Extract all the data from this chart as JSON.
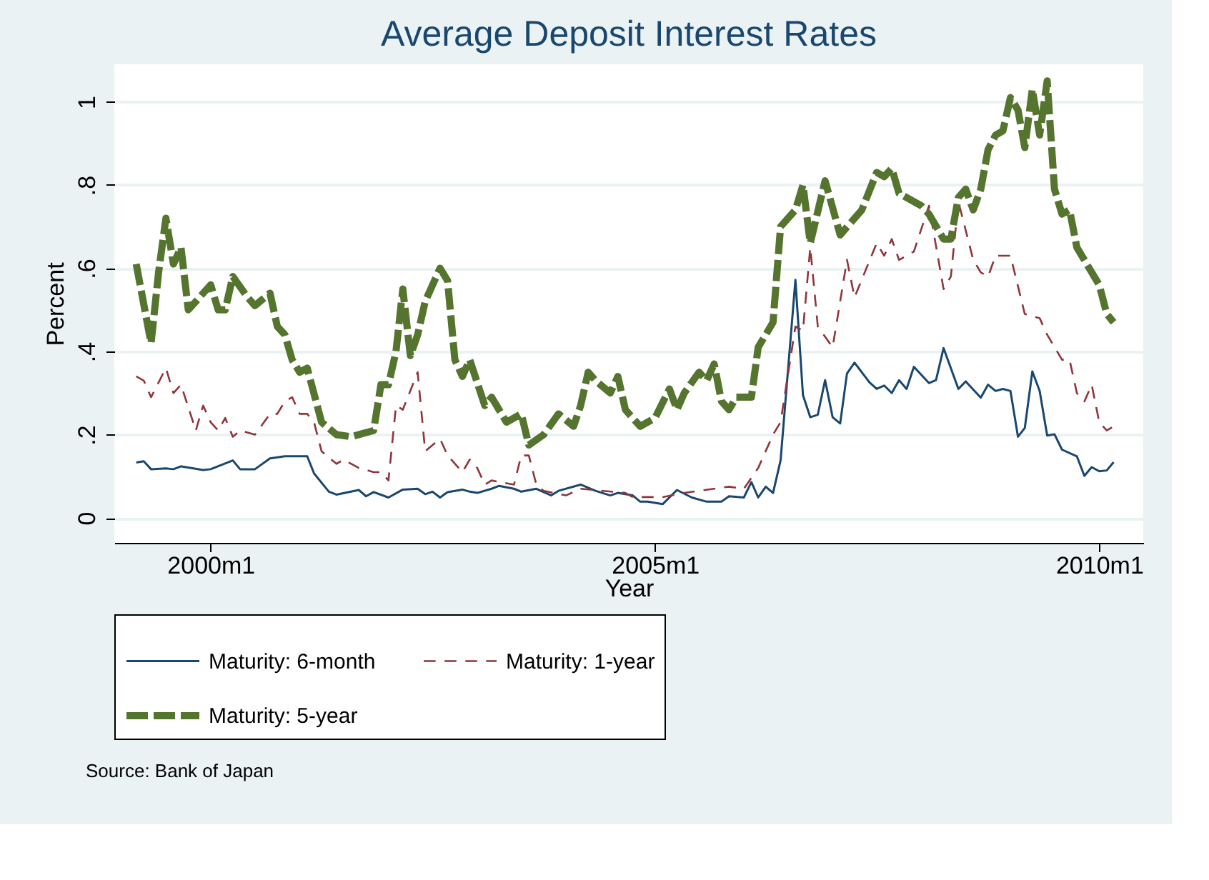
{
  "chart_data": {
    "type": "line",
    "title": "Average Deposit Interest Rates",
    "xlabel": "Year",
    "ylabel": "Percent",
    "xlim": [
      "1998-12",
      "2010-07"
    ],
    "xticks": [
      {
        "value": "2000-01",
        "label": "2000m1"
      },
      {
        "value": "2005-01",
        "label": "2005m1"
      },
      {
        "value": "2010-01",
        "label": "2010m1"
      }
    ],
    "ylim": [
      -0.06,
      1.09
    ],
    "yticks": [
      {
        "value": 0,
        "label": "0"
      },
      {
        "value": 0.2,
        "label": ".2"
      },
      {
        "value": 0.4,
        "label": ".4"
      },
      {
        "value": 0.6,
        "label": ".6"
      },
      {
        "value": 0.8,
        "label": ".8"
      },
      {
        "value": 1,
        "label": "1"
      }
    ],
    "grid": "y",
    "legend": "bottom",
    "marker": "none",
    "annotations": [
      "Source: Bank of Japan"
    ],
    "series": [
      {
        "name": "Maturity: 6-month",
        "color": "#1a476f",
        "line_style": "solid",
        "x": [
          "1999-03",
          "1999-04",
          "1999-05",
          "1999-07",
          "1999-08",
          "1999-09",
          "1999-12",
          "2000-01",
          "2000-04",
          "2000-05",
          "2000-07",
          "2000-09",
          "2000-11",
          "2001-01",
          "2001-02",
          "2001-03",
          "2001-05",
          "2001-06",
          "2001-09",
          "2001-10",
          "2001-11",
          "2002-01",
          "2002-03",
          "2002-05",
          "2002-06",
          "2002-07",
          "2002-08",
          "2002-09",
          "2002-11",
          "2002-12",
          "2003-01",
          "2003-03",
          "2003-04",
          "2003-06",
          "2003-07",
          "2003-09",
          "2003-11",
          "2003-12",
          "2004-03",
          "2004-05",
          "2004-07",
          "2004-08",
          "2004-10",
          "2004-11",
          "2004-12",
          "2005-02",
          "2005-04",
          "2005-06",
          "2005-08",
          "2005-10",
          "2005-11",
          "2006-01",
          "2006-02",
          "2006-03",
          "2006-04",
          "2006-05",
          "2006-06",
          "2006-08",
          "2006-09",
          "2006-10",
          "2006-11",
          "2006-12",
          "2007-01",
          "2007-02",
          "2007-03",
          "2007-04",
          "2007-06",
          "2007-07",
          "2007-08",
          "2007-09",
          "2007-10",
          "2007-11",
          "2007-12",
          "2008-02",
          "2008-03",
          "2008-04",
          "2008-06",
          "2008-07",
          "2008-09",
          "2008-10",
          "2008-11",
          "2008-12",
          "2009-01",
          "2009-02",
          "2009-03",
          "2009-04",
          "2009-05",
          "2009-06",
          "2009-07",
          "2009-08",
          "2009-10",
          "2009-11",
          "2009-12",
          "2010-01",
          "2010-02",
          "2010-03"
        ],
        "values": [
          0.133,
          0.136,
          0.117,
          0.119,
          0.117,
          0.124,
          0.115,
          0.117,
          0.138,
          0.117,
          0.117,
          0.143,
          0.148,
          0.148,
          0.148,
          0.107,
          0.063,
          0.056,
          0.067,
          0.052,
          0.062,
          0.049,
          0.068,
          0.07,
          0.057,
          0.063,
          0.049,
          0.062,
          0.068,
          0.063,
          0.06,
          0.07,
          0.077,
          0.07,
          0.063,
          0.07,
          0.054,
          0.065,
          0.08,
          0.065,
          0.054,
          0.06,
          0.054,
          0.039,
          0.039,
          0.033,
          0.067,
          0.049,
          0.039,
          0.039,
          0.052,
          0.049,
          0.086,
          0.049,
          0.075,
          0.06,
          0.138,
          0.572,
          0.295,
          0.242,
          0.248,
          0.331,
          0.242,
          0.227,
          0.347,
          0.373,
          0.326,
          0.31,
          0.318,
          0.3,
          0.331,
          0.31,
          0.363,
          0.324,
          0.331,
          0.408,
          0.31,
          0.328,
          0.289,
          0.32,
          0.305,
          0.31,
          0.305,
          0.195,
          0.216,
          0.352,
          0.305,
          0.198,
          0.201,
          0.164,
          0.148,
          0.101,
          0.122,
          0.112,
          0.114,
          0.134
        ]
      },
      {
        "name": "Maturity: 1-year",
        "color": "#90353b",
        "line_style": "dashed",
        "x": [
          "1999-03",
          "1999-04",
          "1999-05",
          "1999-07",
          "1999-08",
          "1999-09",
          "1999-11",
          "1999-12",
          "2000-01",
          "2000-02",
          "2000-03",
          "2000-04",
          "2000-05",
          "2000-07",
          "2000-09",
          "2000-10",
          "2000-11",
          "2000-12",
          "2001-01",
          "2001-02",
          "2001-03",
          "2001-04",
          "2001-06",
          "2001-07",
          "2001-09",
          "2001-11",
          "2001-12",
          "2002-01",
          "2002-02",
          "2002-03",
          "2002-05",
          "2002-06",
          "2002-08",
          "2002-09",
          "2002-11",
          "2002-12",
          "2003-01",
          "2003-02",
          "2003-03",
          "2003-06",
          "2003-07",
          "2003-08",
          "2003-09",
          "2003-10",
          "2004-01",
          "2004-03",
          "2004-06",
          "2004-09",
          "2004-10",
          "2005-02",
          "2005-05",
          "2005-07",
          "2005-11",
          "2006-01",
          "2006-03",
          "2006-05",
          "2006-06",
          "2006-08",
          "2006-09",
          "2006-10",
          "2006-11",
          "2007-01",
          "2007-03",
          "2007-04",
          "2007-07",
          "2007-08",
          "2007-09",
          "2007-10",
          "2007-12",
          "2008-02",
          "2008-04",
          "2008-05",
          "2008-06",
          "2008-08",
          "2008-09",
          "2008-10",
          "2008-11",
          "2009-01",
          "2009-03",
          "2009-05",
          "2009-06",
          "2009-08",
          "2009-09",
          "2009-10",
          "2009-11",
          "2009-12",
          "2010-01",
          "2010-02",
          "2010-03"
        ],
        "values": [
          0.34,
          0.33,
          0.29,
          0.36,
          0.3,
          0.32,
          0.21,
          0.27,
          0.23,
          0.21,
          0.24,
          0.195,
          0.21,
          0.2,
          0.25,
          0.25,
          0.28,
          0.29,
          0.25,
          0.25,
          0.23,
          0.16,
          0.13,
          0.14,
          0.12,
          0.11,
          0.11,
          0.09,
          0.27,
          0.26,
          0.35,
          0.16,
          0.19,
          0.15,
          0.11,
          0.14,
          0.12,
          0.08,
          0.09,
          0.08,
          0.15,
          0.15,
          0.08,
          0.065,
          0.054,
          0.07,
          0.065,
          0.06,
          0.05,
          0.05,
          0.06,
          0.065,
          0.075,
          0.07,
          0.12,
          0.2,
          0.23,
          0.46,
          0.45,
          0.65,
          0.46,
          0.41,
          0.62,
          0.53,
          0.66,
          0.63,
          0.67,
          0.62,
          0.64,
          0.75,
          0.55,
          0.58,
          0.76,
          0.62,
          0.59,
          0.58,
          0.63,
          0.63,
          0.49,
          0.48,
          0.44,
          0.38,
          0.38,
          0.3,
          0.28,
          0.32,
          0.23,
          0.21,
          0.22
        ]
      },
      {
        "name": "Maturity: 5-year",
        "color": "#55752f",
        "line_style": "longdash",
        "x": [
          "1999-03",
          "1999-05",
          "1999-06",
          "1999-07",
          "1999-08",
          "1999-09",
          "1999-10",
          "1999-11",
          "2000-01",
          "2000-02",
          "2000-03",
          "2000-04",
          "2000-06",
          "2000-07",
          "2000-09",
          "2000-10",
          "2000-11",
          "2000-12",
          "2001-01",
          "2001-02",
          "2001-04",
          "2001-06",
          "2001-08",
          "2001-11",
          "2001-12",
          "2002-01",
          "2002-02",
          "2002-03",
          "2002-04",
          "2002-05",
          "2002-06",
          "2002-08",
          "2002-09",
          "2002-10",
          "2002-11",
          "2002-12",
          "2003-02",
          "2003-03",
          "2003-05",
          "2003-07",
          "2003-08",
          "2003-10",
          "2003-12",
          "2004-02",
          "2004-03",
          "2004-04",
          "2004-05",
          "2004-07",
          "2004-08",
          "2004-09",
          "2004-10",
          "2004-11",
          "2005-01",
          "2005-03",
          "2005-04",
          "2005-05",
          "2005-07",
          "2005-08",
          "2005-09",
          "2005-10",
          "2005-11",
          "2005-12",
          "2006-02",
          "2006-03",
          "2006-05",
          "2006-06",
          "2006-08",
          "2006-09",
          "2006-10",
          "2006-12",
          "2007-02",
          "2007-05",
          "2007-07",
          "2007-08",
          "2007-09",
          "2007-10",
          "2008-01",
          "2008-02",
          "2008-04",
          "2008-05",
          "2008-06",
          "2008-07",
          "2008-08",
          "2008-09",
          "2008-10",
          "2008-11",
          "2008-12",
          "2009-01",
          "2009-02",
          "2009-03",
          "2009-04",
          "2009-05",
          "2009-06",
          "2009-07",
          "2009-08",
          "2009-09",
          "2009-10",
          "2009-12",
          "2010-01",
          "2010-02",
          "2010-03"
        ],
        "values": [
          0.61,
          0.42,
          0.59,
          0.72,
          0.61,
          0.65,
          0.5,
          0.52,
          0.56,
          0.5,
          0.5,
          0.58,
          0.53,
          0.51,
          0.54,
          0.46,
          0.44,
          0.38,
          0.35,
          0.36,
          0.23,
          0.2,
          0.195,
          0.21,
          0.32,
          0.32,
          0.4,
          0.55,
          0.39,
          0.44,
          0.52,
          0.6,
          0.57,
          0.38,
          0.34,
          0.38,
          0.27,
          0.29,
          0.23,
          0.25,
          0.175,
          0.2,
          0.25,
          0.22,
          0.27,
          0.35,
          0.33,
          0.3,
          0.34,
          0.26,
          0.24,
          0.22,
          0.24,
          0.31,
          0.26,
          0.3,
          0.35,
          0.33,
          0.37,
          0.28,
          0.26,
          0.29,
          0.29,
          0.41,
          0.47,
          0.7,
          0.74,
          0.8,
          0.66,
          0.81,
          0.68,
          0.74,
          0.83,
          0.82,
          0.84,
          0.78,
          0.75,
          0.73,
          0.67,
          0.67,
          0.77,
          0.79,
          0.74,
          0.79,
          0.885,
          0.92,
          0.93,
          1.01,
          0.98,
          0.89,
          1.03,
          0.92,
          1.05,
          0.79,
          0.73,
          0.74,
          0.65,
          0.59,
          0.56,
          0.49,
          0.47
        ]
      }
    ]
  }
}
